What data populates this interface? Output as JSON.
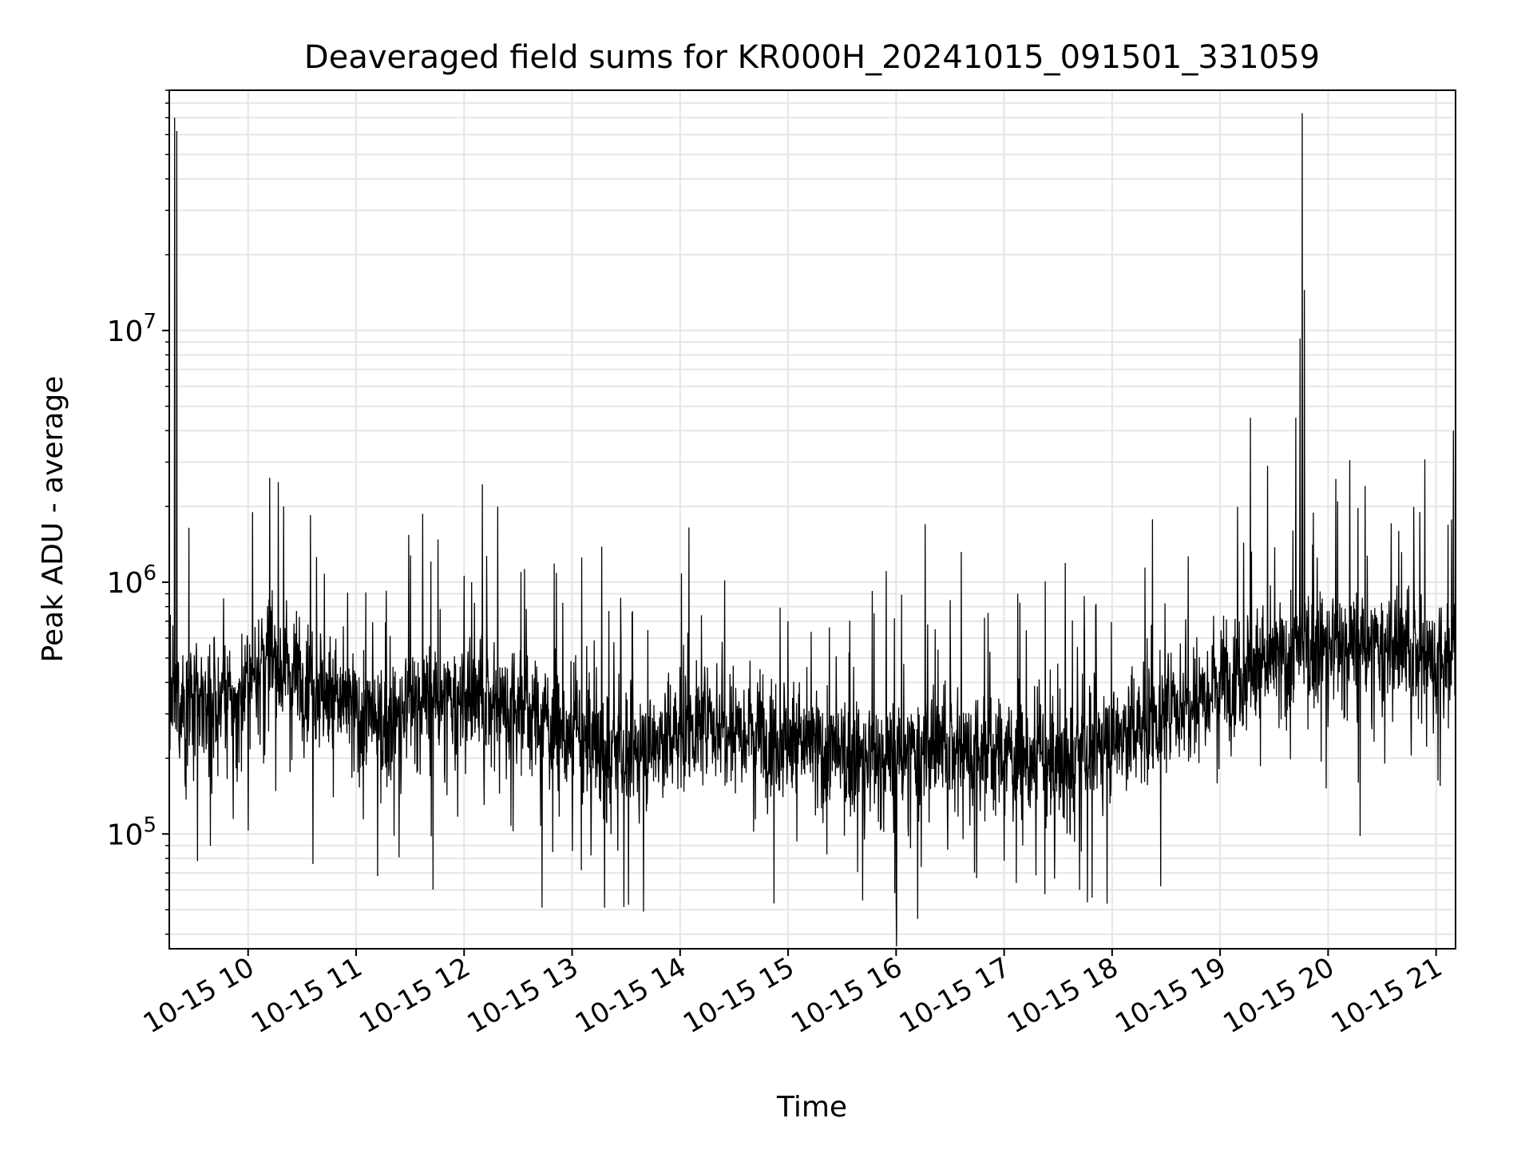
{
  "chart_data": {
    "type": "line",
    "title": "Deaveraged field sums for KR000H_20241015_091501_331059",
    "xlabel": "Time",
    "ylabel": "Peak ADU - average",
    "x_range_hours": [
      9.27,
      21.18
    ],
    "y_scale": "log",
    "ylim": [
      35000,
      90000000
    ],
    "grid": true,
    "line_color": "#000000",
    "grid_color": "#e6e6e6",
    "x_ticks": [
      {
        "hour": 10,
        "label": "10-15 10"
      },
      {
        "hour": 11,
        "label": "10-15 11"
      },
      {
        "hour": 12,
        "label": "10-15 12"
      },
      {
        "hour": 13,
        "label": "10-15 13"
      },
      {
        "hour": 14,
        "label": "10-15 14"
      },
      {
        "hour": 15,
        "label": "10-15 15"
      },
      {
        "hour": 16,
        "label": "10-15 16"
      },
      {
        "hour": 17,
        "label": "10-15 17"
      },
      {
        "hour": 18,
        "label": "10-15 18"
      },
      {
        "hour": 19,
        "label": "10-15 19"
      },
      {
        "hour": 20,
        "label": "10-15 20"
      },
      {
        "hour": 21,
        "label": "10-15 21"
      }
    ],
    "y_major_ticks": [
      {
        "value": 100000,
        "base": "10",
        "exp": "5"
      },
      {
        "value": 1000000,
        "base": "10",
        "exp": "6"
      },
      {
        "value": 10000000,
        "base": "10",
        "exp": "7"
      }
    ],
    "series": [
      {
        "name": "deaveraged field sum",
        "baseline_trend": [
          {
            "hour": 9.27,
            "value": 330000
          },
          {
            "hour": 9.9,
            "value": 330000
          },
          {
            "hour": 10.15,
            "value": 520000
          },
          {
            "hour": 10.5,
            "value": 430000
          },
          {
            "hour": 11.0,
            "value": 300000
          },
          {
            "hour": 11.3,
            "value": 260000
          },
          {
            "hour": 11.5,
            "value": 340000
          },
          {
            "hour": 12.0,
            "value": 330000
          },
          {
            "hour": 12.5,
            "value": 330000
          },
          {
            "hour": 13.0,
            "value": 240000
          },
          {
            "hour": 13.5,
            "value": 200000
          },
          {
            "hour": 14.0,
            "value": 260000
          },
          {
            "hour": 14.5,
            "value": 280000
          },
          {
            "hour": 15.0,
            "value": 240000
          },
          {
            "hour": 15.5,
            "value": 200000
          },
          {
            "hour": 16.0,
            "value": 200000
          },
          {
            "hour": 16.5,
            "value": 220000
          },
          {
            "hour": 17.0,
            "value": 210000
          },
          {
            "hour": 17.5,
            "value": 180000
          },
          {
            "hour": 18.0,
            "value": 240000
          },
          {
            "hour": 18.5,
            "value": 300000
          },
          {
            "hour": 19.0,
            "value": 420000
          },
          {
            "hour": 19.5,
            "value": 480000
          },
          {
            "hour": 20.0,
            "value": 560000
          },
          {
            "hour": 20.5,
            "value": 540000
          },
          {
            "hour": 21.0,
            "value": 500000
          },
          {
            "hour": 21.18,
            "value": 500000
          }
        ],
        "noise_amplitude_log10": 0.28,
        "spikes": [
          {
            "hour": 9.32,
            "value": 70000000
          },
          {
            "hour": 9.34,
            "value": 62000000
          },
          {
            "hour": 10.2,
            "value": 2600000
          },
          {
            "hour": 10.28,
            "value": 2500000
          },
          {
            "hour": 10.33,
            "value": 2000000
          },
          {
            "hour": 12.17,
            "value": 2450000
          },
          {
            "hour": 16.27,
            "value": 1700000
          },
          {
            "hour": 19.28,
            "value": 4500000
          },
          {
            "hour": 19.44,
            "value": 2900000
          },
          {
            "hour": 19.7,
            "value": 4500000
          },
          {
            "hour": 19.74,
            "value": 9300000
          },
          {
            "hour": 19.76,
            "value": 73000000
          },
          {
            "hour": 19.78,
            "value": 14500000
          },
          {
            "hour": 20.85,
            "value": 1900000
          },
          {
            "hour": 21.16,
            "value": 4000000
          }
        ],
        "dips": [
          {
            "hour": 9.53,
            "value": 78000
          },
          {
            "hour": 10.6,
            "value": 76000
          },
          {
            "hour": 11.2,
            "value": 68000
          },
          {
            "hour": 12.72,
            "value": 51000
          },
          {
            "hour": 13.3,
            "value": 51000
          },
          {
            "hour": 14.87,
            "value": 53000
          },
          {
            "hour": 16.0,
            "value": 52000
          },
          {
            "hour": 16.2,
            "value": 46000
          },
          {
            "hour": 17.7,
            "value": 60000
          },
          {
            "hour": 18.45,
            "value": 62000
          }
        ]
      }
    ]
  }
}
